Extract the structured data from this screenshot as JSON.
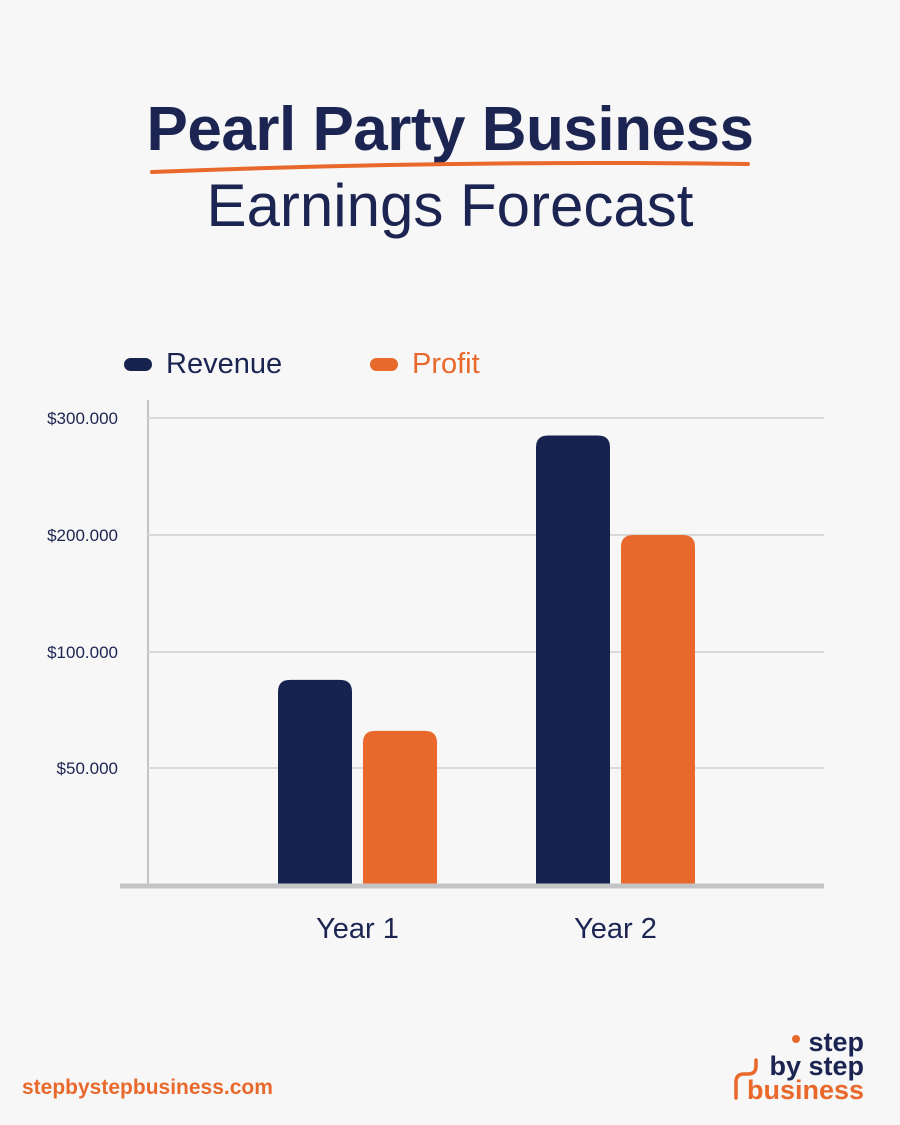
{
  "title": {
    "line1": "Pearl Party Business",
    "line2": "Earnings Forecast"
  },
  "colors": {
    "revenue": "#16234f",
    "profit": "#e8692b",
    "title": "#1c2551",
    "accent": "#e8692b",
    "grid": "#d9d9d9",
    "axis": "#c4c4c4"
  },
  "footer": {
    "url": "stepbystepbusiness.com",
    "logo_lines": [
      "step",
      "by step",
      "business"
    ]
  },
  "chart_data": {
    "type": "bar",
    "categories": [
      "Year 1",
      "Year 2"
    ],
    "series": [
      {
        "name": "Revenue",
        "values": [
          88000,
          285000
        ],
        "color": "#16234f"
      },
      {
        "name": "Profit",
        "values": [
          66000,
          200000
        ],
        "color": "#e8692b"
      }
    ],
    "yticks": [
      50000,
      100000,
      200000,
      300000
    ],
    "ytick_labels": [
      "$50.000",
      "$100.000",
      "$200.000",
      "$300.000"
    ],
    "ylim": [
      0,
      300000
    ],
    "grid": true,
    "legend": "top-left",
    "y_scale": "piecewise"
  }
}
